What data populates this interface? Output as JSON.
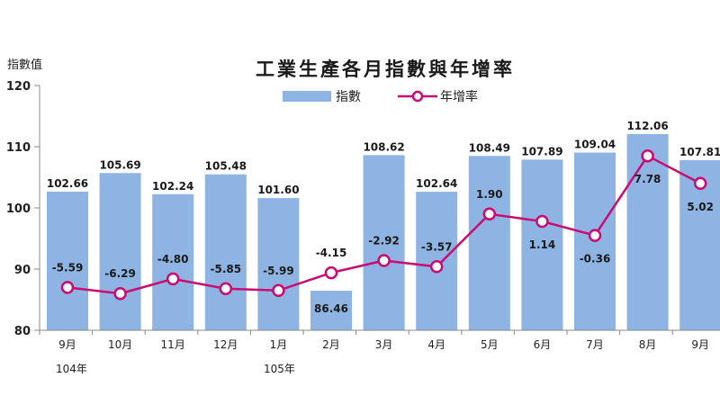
{
  "chart_data": {
    "type": "bar+line",
    "title": "工業生產各月指數與年增率",
    "ylabel": "指數值",
    "ylim": [
      80,
      120
    ],
    "yticks": [
      "80",
      "90",
      "100",
      "110",
      "120"
    ],
    "categories": [
      "9月",
      "10月",
      "11月",
      "12月",
      "1月",
      "2月",
      "3月",
      "4月",
      "5月",
      "6月",
      "7月",
      "8月",
      "9月"
    ],
    "year_labels": [
      "104年",
      "105年"
    ],
    "legend": {
      "bar": "指數",
      "line": "年增率"
    },
    "series": [
      {
        "name": "指數",
        "kind": "bar",
        "color": "#8db4e2",
        "values": [
          102.66,
          105.69,
          102.24,
          105.48,
          101.6,
          86.46,
          108.62,
          102.64,
          108.49,
          107.89,
          109.04,
          112.06,
          107.81
        ],
        "labels": [
          "102.66",
          "105.69",
          "102.24",
          "105.48",
          "101.60",
          "86.46",
          "108.62",
          "102.64",
          "108.49",
          "107.89",
          "109.04",
          "112.06",
          "107.81"
        ]
      },
      {
        "name": "年增率",
        "kind": "line",
        "color": "#cc0a73",
        "values": [
          -5.59,
          -6.29,
          -4.8,
          -5.85,
          -5.99,
          -4.15,
          -2.92,
          -3.57,
          1.9,
          1.14,
          -0.36,
          7.78,
          5.02
        ],
        "labels": [
          "-5.59",
          "-6.29",
          "-4.80",
          "-5.85",
          "-5.99",
          "-4.15",
          "-2.92",
          "-3.57",
          "1.90",
          "1.14",
          "-0.36",
          "7.78",
          "5.02"
        ],
        "plotted_on_index_axis": [
          87.0,
          86.0,
          88.4,
          86.8,
          86.5,
          89.4,
          91.4,
          90.4,
          99.0,
          97.8,
          95.5,
          108.5,
          104.0
        ]
      }
    ]
  }
}
